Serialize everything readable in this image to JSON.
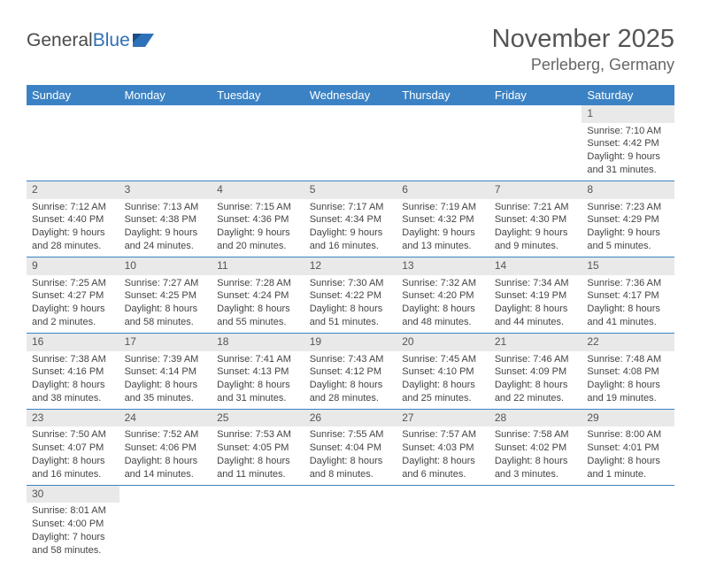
{
  "brand": {
    "part1": "General",
    "part2": "Blue"
  },
  "title": "November 2025",
  "location": "Perleberg, Germany",
  "dayHeaders": [
    "Sunday",
    "Monday",
    "Tuesday",
    "Wednesday",
    "Thursday",
    "Friday",
    "Saturday"
  ],
  "colors": {
    "header_bg": "#3b82c4",
    "daynum_bg": "#e9e9e9",
    "row_border": "#3b82c4",
    "logo_blue": "#2d71b8"
  },
  "weeks": [
    [
      null,
      null,
      null,
      null,
      null,
      null,
      {
        "n": "1",
        "sr": "Sunrise: 7:10 AM",
        "ss": "Sunset: 4:42 PM",
        "d1": "Daylight: 9 hours",
        "d2": "and 31 minutes."
      }
    ],
    [
      {
        "n": "2",
        "sr": "Sunrise: 7:12 AM",
        "ss": "Sunset: 4:40 PM",
        "d1": "Daylight: 9 hours",
        "d2": "and 28 minutes."
      },
      {
        "n": "3",
        "sr": "Sunrise: 7:13 AM",
        "ss": "Sunset: 4:38 PM",
        "d1": "Daylight: 9 hours",
        "d2": "and 24 minutes."
      },
      {
        "n": "4",
        "sr": "Sunrise: 7:15 AM",
        "ss": "Sunset: 4:36 PM",
        "d1": "Daylight: 9 hours",
        "d2": "and 20 minutes."
      },
      {
        "n": "5",
        "sr": "Sunrise: 7:17 AM",
        "ss": "Sunset: 4:34 PM",
        "d1": "Daylight: 9 hours",
        "d2": "and 16 minutes."
      },
      {
        "n": "6",
        "sr": "Sunrise: 7:19 AM",
        "ss": "Sunset: 4:32 PM",
        "d1": "Daylight: 9 hours",
        "d2": "and 13 minutes."
      },
      {
        "n": "7",
        "sr": "Sunrise: 7:21 AM",
        "ss": "Sunset: 4:30 PM",
        "d1": "Daylight: 9 hours",
        "d2": "and 9 minutes."
      },
      {
        "n": "8",
        "sr": "Sunrise: 7:23 AM",
        "ss": "Sunset: 4:29 PM",
        "d1": "Daylight: 9 hours",
        "d2": "and 5 minutes."
      }
    ],
    [
      {
        "n": "9",
        "sr": "Sunrise: 7:25 AM",
        "ss": "Sunset: 4:27 PM",
        "d1": "Daylight: 9 hours",
        "d2": "and 2 minutes."
      },
      {
        "n": "10",
        "sr": "Sunrise: 7:27 AM",
        "ss": "Sunset: 4:25 PM",
        "d1": "Daylight: 8 hours",
        "d2": "and 58 minutes."
      },
      {
        "n": "11",
        "sr": "Sunrise: 7:28 AM",
        "ss": "Sunset: 4:24 PM",
        "d1": "Daylight: 8 hours",
        "d2": "and 55 minutes."
      },
      {
        "n": "12",
        "sr": "Sunrise: 7:30 AM",
        "ss": "Sunset: 4:22 PM",
        "d1": "Daylight: 8 hours",
        "d2": "and 51 minutes."
      },
      {
        "n": "13",
        "sr": "Sunrise: 7:32 AM",
        "ss": "Sunset: 4:20 PM",
        "d1": "Daylight: 8 hours",
        "d2": "and 48 minutes."
      },
      {
        "n": "14",
        "sr": "Sunrise: 7:34 AM",
        "ss": "Sunset: 4:19 PM",
        "d1": "Daylight: 8 hours",
        "d2": "and 44 minutes."
      },
      {
        "n": "15",
        "sr": "Sunrise: 7:36 AM",
        "ss": "Sunset: 4:17 PM",
        "d1": "Daylight: 8 hours",
        "d2": "and 41 minutes."
      }
    ],
    [
      {
        "n": "16",
        "sr": "Sunrise: 7:38 AM",
        "ss": "Sunset: 4:16 PM",
        "d1": "Daylight: 8 hours",
        "d2": "and 38 minutes."
      },
      {
        "n": "17",
        "sr": "Sunrise: 7:39 AM",
        "ss": "Sunset: 4:14 PM",
        "d1": "Daylight: 8 hours",
        "d2": "and 35 minutes."
      },
      {
        "n": "18",
        "sr": "Sunrise: 7:41 AM",
        "ss": "Sunset: 4:13 PM",
        "d1": "Daylight: 8 hours",
        "d2": "and 31 minutes."
      },
      {
        "n": "19",
        "sr": "Sunrise: 7:43 AM",
        "ss": "Sunset: 4:12 PM",
        "d1": "Daylight: 8 hours",
        "d2": "and 28 minutes."
      },
      {
        "n": "20",
        "sr": "Sunrise: 7:45 AM",
        "ss": "Sunset: 4:10 PM",
        "d1": "Daylight: 8 hours",
        "d2": "and 25 minutes."
      },
      {
        "n": "21",
        "sr": "Sunrise: 7:46 AM",
        "ss": "Sunset: 4:09 PM",
        "d1": "Daylight: 8 hours",
        "d2": "and 22 minutes."
      },
      {
        "n": "22",
        "sr": "Sunrise: 7:48 AM",
        "ss": "Sunset: 4:08 PM",
        "d1": "Daylight: 8 hours",
        "d2": "and 19 minutes."
      }
    ],
    [
      {
        "n": "23",
        "sr": "Sunrise: 7:50 AM",
        "ss": "Sunset: 4:07 PM",
        "d1": "Daylight: 8 hours",
        "d2": "and 16 minutes."
      },
      {
        "n": "24",
        "sr": "Sunrise: 7:52 AM",
        "ss": "Sunset: 4:06 PM",
        "d1": "Daylight: 8 hours",
        "d2": "and 14 minutes."
      },
      {
        "n": "25",
        "sr": "Sunrise: 7:53 AM",
        "ss": "Sunset: 4:05 PM",
        "d1": "Daylight: 8 hours",
        "d2": "and 11 minutes."
      },
      {
        "n": "26",
        "sr": "Sunrise: 7:55 AM",
        "ss": "Sunset: 4:04 PM",
        "d1": "Daylight: 8 hours",
        "d2": "and 8 minutes."
      },
      {
        "n": "27",
        "sr": "Sunrise: 7:57 AM",
        "ss": "Sunset: 4:03 PM",
        "d1": "Daylight: 8 hours",
        "d2": "and 6 minutes."
      },
      {
        "n": "28",
        "sr": "Sunrise: 7:58 AM",
        "ss": "Sunset: 4:02 PM",
        "d1": "Daylight: 8 hours",
        "d2": "and 3 minutes."
      },
      {
        "n": "29",
        "sr": "Sunrise: 8:00 AM",
        "ss": "Sunset: 4:01 PM",
        "d1": "Daylight: 8 hours",
        "d2": "and 1 minute."
      }
    ],
    [
      {
        "n": "30",
        "sr": "Sunrise: 8:01 AM",
        "ss": "Sunset: 4:00 PM",
        "d1": "Daylight: 7 hours",
        "d2": "and 58 minutes."
      },
      null,
      null,
      null,
      null,
      null,
      null
    ]
  ]
}
